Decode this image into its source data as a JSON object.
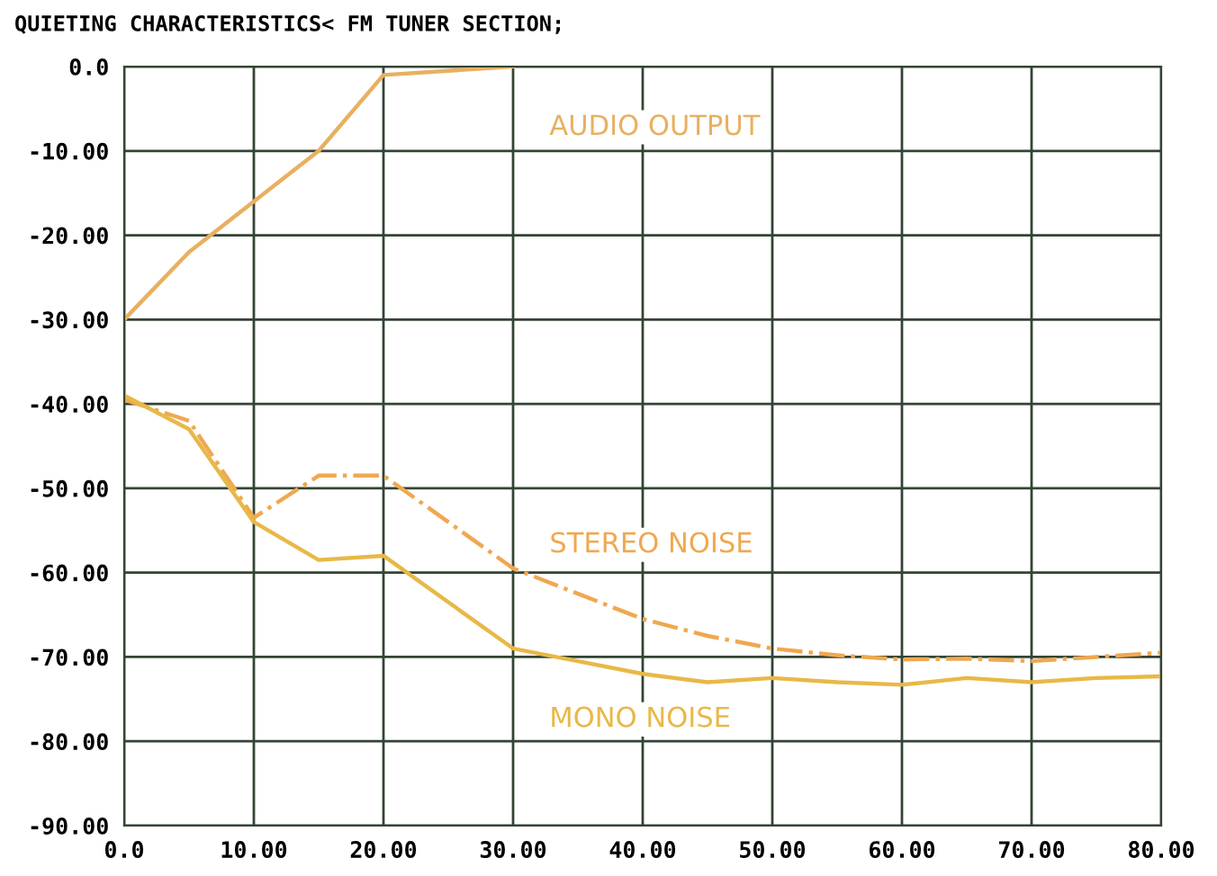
{
  "chart_data": {
    "type": "line",
    "title": "QUIETING CHARACTERISTICS< FM TUNER SECTION;",
    "x": [
      0,
      5,
      10,
      15,
      20,
      25,
      30,
      35,
      40,
      45,
      50,
      55,
      60,
      65,
      70,
      75,
      80
    ],
    "series": [
      {
        "name": "AUDIO OUTPUT",
        "color": "#e8b060",
        "line_style": "solid",
        "x": [
          0,
          5,
          10,
          15,
          20,
          25,
          30
        ],
        "values": [
          -30,
          -22,
          -16,
          -10,
          -1,
          -0.5,
          0
        ]
      },
      {
        "name": "STEREO NOISE",
        "color": "#f0a850",
        "line_style": "dashdot",
        "values": [
          -39.5,
          -42,
          -53.5,
          -48.5,
          -48.5,
          -54,
          -59.5,
          -62.5,
          -65.5,
          -67.5,
          -69,
          -69.8,
          -70.3,
          -70.2,
          -70.5,
          -70,
          -69.5
        ]
      },
      {
        "name": "MONO NOISE",
        "color": "#e8b848",
        "line_style": "solid",
        "values": [
          -39,
          -43,
          -54,
          -58.5,
          -58,
          -63.5,
          -69,
          -70.5,
          -72,
          -73,
          -72.5,
          -73,
          -73.3,
          -72.5,
          -73,
          -72.5,
          -72.3
        ]
      }
    ],
    "xlim": [
      0,
      80
    ],
    "ylim": [
      -90,
      0
    ],
    "xticks": [
      {
        "value": 0,
        "label": "0.0"
      },
      {
        "value": 10,
        "label": "10.00"
      },
      {
        "value": 20,
        "label": "20.00"
      },
      {
        "value": 30,
        "label": "30.00"
      },
      {
        "value": 40,
        "label": "40.00"
      },
      {
        "value": 50,
        "label": "50.00"
      },
      {
        "value": 60,
        "label": "60.00"
      },
      {
        "value": 70,
        "label": "70.00"
      },
      {
        "value": 80,
        "label": "80.00"
      }
    ],
    "yticks": [
      {
        "value": 0,
        "label": "0.0"
      },
      {
        "value": -10,
        "label": "-10.00"
      },
      {
        "value": -20,
        "label": "-20.00"
      },
      {
        "value": -30,
        "label": "-30.00"
      },
      {
        "value": -40,
        "label": "-40.00"
      },
      {
        "value": -50,
        "label": "-50.00"
      },
      {
        "value": -60,
        "label": "-60.00"
      },
      {
        "value": -70,
        "label": "-70.00"
      },
      {
        "value": -80,
        "label": "-80.00"
      },
      {
        "value": -90,
        "label": "-90.00"
      }
    ],
    "grid": true
  }
}
